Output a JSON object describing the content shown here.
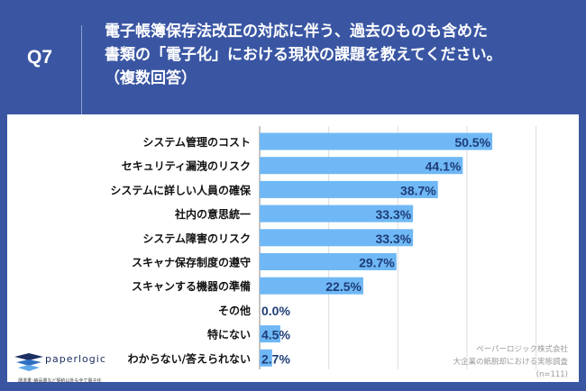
{
  "header": {
    "question_no": "Q7",
    "title": "電子帳簿保存法改正の対応に伴う、過去のものも含めた\n書類の「電子化」における現状の課題を教えてください。\n（複数回答）"
  },
  "colors": {
    "background": "#3a56a3",
    "bar": "#6fb8f5",
    "value_text": "#1e3d78"
  },
  "chart_data": {
    "type": "bar",
    "orientation": "horizontal",
    "grid": true,
    "xlim": [
      0,
      60
    ],
    "categories": [
      "システム管理のコスト",
      "セキュリティ漏洩のリスク",
      "システムに詳しい人員の確保",
      "社内の意思統一",
      "システム障害のリスク",
      "スキャナ保存制度の遵守",
      "スキャンする機器の準備",
      "その他",
      "特にない",
      "わからない/答えられない"
    ],
    "values": [
      50.5,
      44.1,
      38.7,
      33.3,
      33.3,
      29.7,
      22.5,
      0.0,
      4.5,
      2.7
    ],
    "value_labels": [
      "50.5%",
      "44.1%",
      "38.7%",
      "33.3%",
      "33.3%",
      "29.7%",
      "22.5%",
      "0.0%",
      "4.5%",
      "2.7%"
    ]
  },
  "footer": {
    "logo": "paperlogic",
    "tagline": "請求書･納品書など契約以外も全て電子化",
    "source": [
      "ペーパーロジック株式会社",
      "大企業の紙脱却における実態調査",
      "(n=111)"
    ]
  }
}
